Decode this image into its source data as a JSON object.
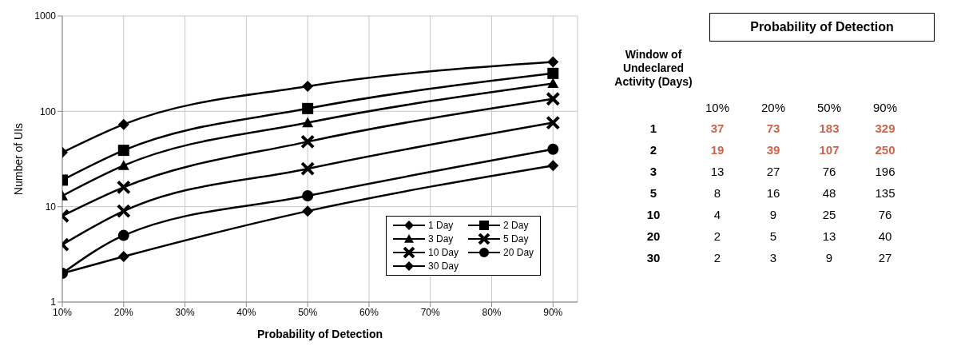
{
  "chart_data": [
    {
      "type": "line",
      "xlabel": "Probability of Detection",
      "ylabel": "Number of UIs",
      "x": [
        10,
        20,
        50,
        90
      ],
      "series": [
        {
          "name": "1 Day",
          "color": "#000000",
          "marker": "diamond",
          "values": [
            37,
            73,
            183,
            329
          ]
        },
        {
          "name": "2 Day",
          "color": "#000000",
          "marker": "square",
          "values": [
            19,
            39,
            107,
            250
          ]
        },
        {
          "name": "3 Day",
          "color": "#000000",
          "marker": "triangle",
          "values": [
            13,
            27,
            76,
            196
          ]
        },
        {
          "name": "5 Day",
          "color": "#000000",
          "marker": "cross",
          "values": [
            8,
            16,
            48,
            135
          ]
        },
        {
          "name": "10 Day",
          "color": "#000000",
          "marker": "cross",
          "values": [
            4,
            9,
            25,
            76
          ]
        },
        {
          "name": "20 Day",
          "color": "#000000",
          "marker": "circle",
          "values": [
            2,
            5,
            13,
            40
          ]
        },
        {
          "name": "30 Day",
          "color": "#000000",
          "marker": "diamond",
          "values": [
            2,
            3,
            9,
            27
          ]
        }
      ],
      "xlim": [
        10,
        94
      ],
      "xticks": [
        {
          "value": 10,
          "label": "10%"
        },
        {
          "value": 20,
          "label": "20%"
        },
        {
          "value": 30,
          "label": "30%"
        },
        {
          "value": 40,
          "label": "40%"
        },
        {
          "value": 50,
          "label": "50%"
        },
        {
          "value": 60,
          "label": "60%"
        },
        {
          "value": 70,
          "label": "70%"
        },
        {
          "value": 80,
          "label": "80%"
        },
        {
          "value": 90,
          "label": "90%"
        }
      ],
      "ylim": [
        1,
        1000
      ],
      "yticks": [
        1,
        10,
        100,
        1000
      ],
      "log": true,
      "grid": true,
      "legend": "bottom right",
      "line_style": "solid"
    },
    {
      "type": "heatmap",
      "title": "Probability of Detection",
      "ylabel": "Window of Undeclared Activity (Days)",
      "categories": [
        "10%",
        "20%",
        "50%",
        "90%"
      ],
      "data_labels": true,
      "y_categories": [
        "1",
        "2",
        "3",
        "5",
        "10",
        "20",
        "30"
      ],
      "cells": [
        [
          37,
          73,
          183,
          329
        ],
        [
          19,
          39,
          107,
          250
        ],
        [
          13,
          27,
          76,
          196
        ],
        [
          8,
          16,
          48,
          135
        ],
        [
          4,
          9,
          25,
          76
        ],
        [
          2,
          5,
          13,
          40
        ],
        [
          2,
          3,
          9,
          27
        ]
      ]
    }
  ]
}
